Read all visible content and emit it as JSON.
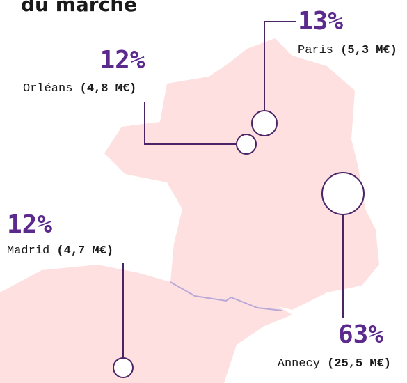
{
  "title": "du marché",
  "locations": [
    {
      "share": "13%",
      "name": "Paris",
      "amount": "(5,3 M€)"
    },
    {
      "share": "12%",
      "name": "Orléans",
      "amount": "(4,8 M€)"
    },
    {
      "share": "12%",
      "name": "Madrid",
      "amount": "(4,7 M€)"
    },
    {
      "share": "63%",
      "name": "Annecy",
      "amount": "(25,5 M€)"
    }
  ]
}
